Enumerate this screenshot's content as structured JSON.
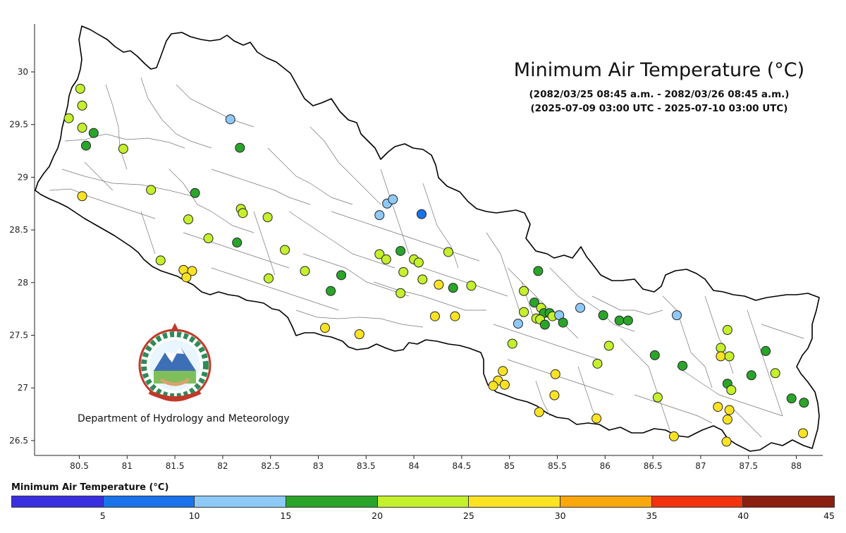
{
  "title": "Minimum Air Temperature (°C)",
  "subtitle_nepali_date": "(2082/03/25 08:45 a.m. - 2082/03/26 08:45 a.m.)",
  "subtitle_utc": "(2025-07-09 03:00 UTC - 2025-07-10 03:00 UTC)",
  "organization": "Department of Hydrology and Meteorology",
  "map": {
    "x_ticks": [
      "80.5",
      "81",
      "81.5",
      "82",
      "82.5",
      "83",
      "83.5",
      "84",
      "84.5",
      "85",
      "85.5",
      "86",
      "86.5",
      "87",
      "87.5",
      "88"
    ],
    "y_ticks": [
      "30",
      "29.5",
      "29",
      "28.5",
      "28",
      "27.5",
      "27",
      "26.5"
    ]
  },
  "legend": {
    "title": "Minimum Air Temperature (°C)",
    "bins": [
      {
        "range": "<5",
        "color": "#3a2fe0"
      },
      {
        "range": "5-10",
        "color": "#1a73ea"
      },
      {
        "range": "10-15",
        "color": "#8ec9f7"
      },
      {
        "range": "15-20",
        "color": "#2aa52a"
      },
      {
        "range": "20-25",
        "color": "#c4f02c"
      },
      {
        "range": "25-30",
        "color": "#fbe324"
      },
      {
        "range": "30-35",
        "color": "#f9a70c"
      },
      {
        "range": "35-40",
        "color": "#f2320f"
      },
      {
        "range": ">40",
        "color": "#8b2011"
      }
    ],
    "tick_labels": [
      "5",
      "10",
      "15",
      "20",
      "25",
      "30",
      "35",
      "40",
      "45"
    ]
  },
  "stations": [
    {
      "lon": 80.51,
      "lat": 29.84,
      "bin": 4
    },
    {
      "lon": 80.53,
      "lat": 29.68,
      "bin": 4
    },
    {
      "lon": 80.39,
      "lat": 29.56,
      "bin": 4
    },
    {
      "lon": 80.53,
      "lat": 29.47,
      "bin": 4
    },
    {
      "lon": 80.65,
      "lat": 29.42,
      "bin": 3
    },
    {
      "lon": 80.57,
      "lat": 29.3,
      "bin": 3
    },
    {
      "lon": 80.96,
      "lat": 29.27,
      "bin": 4
    },
    {
      "lon": 80.53,
      "lat": 28.82,
      "bin": 5
    },
    {
      "lon": 81.25,
      "lat": 28.88,
      "bin": 4
    },
    {
      "lon": 81.71,
      "lat": 28.85,
      "bin": 3
    },
    {
      "lon": 81.64,
      "lat": 28.6,
      "bin": 4
    },
    {
      "lon": 81.85,
      "lat": 28.42,
      "bin": 4
    },
    {
      "lon": 81.35,
      "lat": 28.21,
      "bin": 4
    },
    {
      "lon": 81.59,
      "lat": 28.12,
      "bin": 5
    },
    {
      "lon": 81.68,
      "lat": 28.11,
      "bin": 5
    },
    {
      "lon": 81.62,
      "lat": 28.05,
      "bin": 5
    },
    {
      "lon": 82.08,
      "lat": 29.55,
      "bin": 2
    },
    {
      "lon": 82.18,
      "lat": 29.28,
      "bin": 3
    },
    {
      "lon": 82.19,
      "lat": 28.7,
      "bin": 4
    },
    {
      "lon": 82.21,
      "lat": 28.66,
      "bin": 4
    },
    {
      "lon": 82.47,
      "lat": 28.62,
      "bin": 4
    },
    {
      "lon": 82.15,
      "lat": 28.38,
      "bin": 3
    },
    {
      "lon": 82.65,
      "lat": 28.31,
      "bin": 4
    },
    {
      "lon": 82.48,
      "lat": 28.04,
      "bin": 4
    },
    {
      "lon": 82.86,
      "lat": 28.11,
      "bin": 4
    },
    {
      "lon": 83.24,
      "lat": 28.07,
      "bin": 3
    },
    {
      "lon": 83.13,
      "lat": 27.92,
      "bin": 3
    },
    {
      "lon": 83.07,
      "lat": 27.57,
      "bin": 5
    },
    {
      "lon": 83.43,
      "lat": 27.51,
      "bin": 5
    },
    {
      "lon": 83.72,
      "lat": 28.75,
      "bin": 2
    },
    {
      "lon": 83.78,
      "lat": 28.79,
      "bin": 2
    },
    {
      "lon": 83.64,
      "lat": 28.64,
      "bin": 2
    },
    {
      "lon": 84.08,
      "lat": 28.65,
      "bin": 1
    },
    {
      "lon": 83.64,
      "lat": 28.27,
      "bin": 4
    },
    {
      "lon": 83.71,
      "lat": 28.22,
      "bin": 4
    },
    {
      "lon": 83.86,
      "lat": 28.3,
      "bin": 3
    },
    {
      "lon": 84.0,
      "lat": 28.22,
      "bin": 4
    },
    {
      "lon": 84.05,
      "lat": 28.19,
      "bin": 4
    },
    {
      "lon": 83.89,
      "lat": 28.1,
      "bin": 4
    },
    {
      "lon": 84.09,
      "lat": 28.03,
      "bin": 4
    },
    {
      "lon": 83.86,
      "lat": 27.9,
      "bin": 4
    },
    {
      "lon": 84.36,
      "lat": 28.29,
      "bin": 4
    },
    {
      "lon": 84.26,
      "lat": 27.98,
      "bin": 5
    },
    {
      "lon": 84.41,
      "lat": 27.95,
      "bin": 3
    },
    {
      "lon": 84.6,
      "lat": 27.97,
      "bin": 4
    },
    {
      "lon": 84.22,
      "lat": 27.68,
      "bin": 5
    },
    {
      "lon": 84.43,
      "lat": 27.68,
      "bin": 5
    },
    {
      "lon": 85.03,
      "lat": 27.42,
      "bin": 4
    },
    {
      "lon": 85.3,
      "lat": 28.11,
      "bin": 3
    },
    {
      "lon": 85.15,
      "lat": 27.92,
      "bin": 4
    },
    {
      "lon": 85.15,
      "lat": 27.72,
      "bin": 4
    },
    {
      "lon": 85.26,
      "lat": 27.81,
      "bin": 3
    },
    {
      "lon": 85.33,
      "lat": 27.76,
      "bin": 4
    },
    {
      "lon": 85.36,
      "lat": 27.71,
      "bin": 3
    },
    {
      "lon": 85.42,
      "lat": 27.71,
      "bin": 3
    },
    {
      "lon": 85.28,
      "lat": 27.66,
      "bin": 4
    },
    {
      "lon": 85.32,
      "lat": 27.65,
      "bin": 4
    },
    {
      "lon": 85.45,
      "lat": 27.68,
      "bin": 4
    },
    {
      "lon": 85.52,
      "lat": 27.69,
      "bin": 2
    },
    {
      "lon": 85.56,
      "lat": 27.62,
      "bin": 3
    },
    {
      "lon": 85.37,
      "lat": 27.6,
      "bin": 3
    },
    {
      "lon": 85.09,
      "lat": 27.61,
      "bin": 2
    },
    {
      "lon": 85.74,
      "lat": 27.76,
      "bin": 2
    },
    {
      "lon": 85.98,
      "lat": 27.69,
      "bin": 3
    },
    {
      "lon": 86.15,
      "lat": 27.64,
      "bin": 3
    },
    {
      "lon": 86.24,
      "lat": 27.64,
      "bin": 3
    },
    {
      "lon": 86.04,
      "lat": 27.4,
      "bin": 4
    },
    {
      "lon": 85.92,
      "lat": 27.23,
      "bin": 4
    },
    {
      "lon": 85.48,
      "lat": 27.13,
      "bin": 5
    },
    {
      "lon": 85.47,
      "lat": 26.93,
      "bin": 5
    },
    {
      "lon": 85.31,
      "lat": 26.77,
      "bin": 5
    },
    {
      "lon": 85.91,
      "lat": 26.71,
      "bin": 5
    },
    {
      "lon": 84.93,
      "lat": 27.16,
      "bin": 5
    },
    {
      "lon": 84.88,
      "lat": 27.07,
      "bin": 5
    },
    {
      "lon": 84.83,
      "lat": 27.02,
      "bin": 5
    },
    {
      "lon": 84.95,
      "lat": 27.03,
      "bin": 5
    },
    {
      "lon": 86.52,
      "lat": 27.31,
      "bin": 3
    },
    {
      "lon": 86.75,
      "lat": 27.69,
      "bin": 2
    },
    {
      "lon": 86.81,
      "lat": 27.21,
      "bin": 3
    },
    {
      "lon": 86.55,
      "lat": 26.91,
      "bin": 4
    },
    {
      "lon": 86.72,
      "lat": 26.54,
      "bin": 5
    },
    {
      "lon": 87.28,
      "lat": 27.55,
      "bin": 4
    },
    {
      "lon": 87.21,
      "lat": 27.38,
      "bin": 4
    },
    {
      "lon": 87.21,
      "lat": 27.3,
      "bin": 5
    },
    {
      "lon": 87.3,
      "lat": 27.3,
      "bin": 4
    },
    {
      "lon": 87.28,
      "lat": 27.04,
      "bin": 3
    },
    {
      "lon": 87.32,
      "lat": 26.98,
      "bin": 4
    },
    {
      "lon": 87.68,
      "lat": 27.35,
      "bin": 3
    },
    {
      "lon": 87.53,
      "lat": 27.12,
      "bin": 3
    },
    {
      "lon": 87.78,
      "lat": 27.14,
      "bin": 4
    },
    {
      "lon": 87.18,
      "lat": 26.82,
      "bin": 5
    },
    {
      "lon": 87.3,
      "lat": 26.79,
      "bin": 5
    },
    {
      "lon": 87.28,
      "lat": 26.7,
      "bin": 5
    },
    {
      "lon": 87.27,
      "lat": 26.49,
      "bin": 5
    },
    {
      "lon": 87.95,
      "lat": 26.9,
      "bin": 3
    },
    {
      "lon": 88.08,
      "lat": 26.86,
      "bin": 3
    },
    {
      "lon": 88.07,
      "lat": 26.57,
      "bin": 5
    }
  ]
}
